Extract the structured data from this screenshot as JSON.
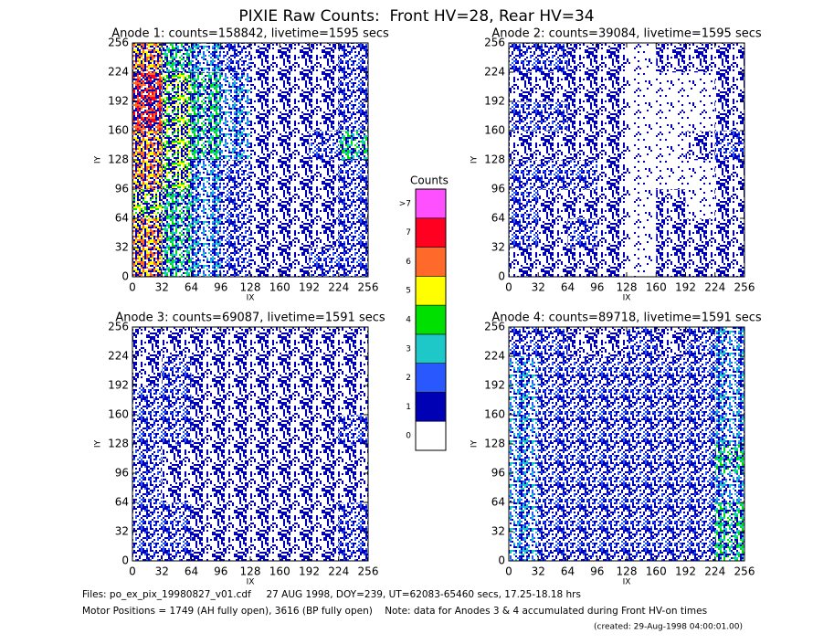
{
  "title": "PIXIE Raw Counts:  Front HV=28, Rear HV=34",
  "colorbar": {
    "title": "Counts",
    "labels": [
      "0",
      "1",
      "2",
      "3",
      "4",
      "5",
      "6",
      "7",
      ">7"
    ],
    "colors": [
      "#ffffff",
      "#0000b4",
      "#2a58ff",
      "#1ec8c8",
      "#00e000",
      "#ffff00",
      "#ff6a2a",
      "#ff0020",
      "#ff50ff"
    ]
  },
  "footer": [
    "Files: po_ex_pix_19980827_v01.cdf     27 AUG 1998, DOY=239, UT=62083-65460 secs, 17.25-18.18 hrs",
    "Motor Positions = 1749 (AH fully open), 3616 (BP fully open)    Note: data for Anodes 3 & 4 accumulated during Front HV-on times",
    "(created: 29-Aug-1998 04:00:01.00)"
  ],
  "chart_data": [
    {
      "type": "heatmap",
      "title": "Anode 1: counts=158842, livetime=1595 secs",
      "xlabel": "IX",
      "ylabel": "IY",
      "xlim": [
        0,
        256
      ],
      "ylim": [
        0,
        256
      ],
      "xticks": [
        0,
        32,
        64,
        96,
        128,
        160,
        192,
        224,
        256
      ],
      "yticks": [
        0,
        32,
        64,
        96,
        128,
        160,
        192,
        224,
        256
      ],
      "values": [
        [
          6,
          4,
          3,
          2,
          1,
          1,
          2,
          2
        ],
        [
          6,
          4,
          3,
          2,
          1,
          1,
          1,
          2
        ],
        [
          5,
          4,
          3,
          2,
          1,
          1,
          1,
          2
        ],
        [
          6,
          5,
          3,
          2,
          1,
          1,
          1,
          2
        ],
        [
          6,
          5,
          4,
          3,
          1,
          1,
          2,
          4
        ],
        [
          7,
          5,
          4,
          3,
          1,
          1,
          1,
          2
        ],
        [
          7,
          5,
          4,
          3,
          1,
          1,
          1,
          2
        ],
        [
          6,
          4,
          3,
          2,
          1,
          1,
          1,
          2
        ]
      ]
    },
    {
      "type": "heatmap",
      "title": "Anode 2: counts=39084, livetime=1595 secs",
      "xlabel": "IX",
      "ylabel": "IY",
      "xlim": [
        0,
        256
      ],
      "ylim": [
        0,
        256
      ],
      "xticks": [
        0,
        32,
        64,
        96,
        128,
        160,
        192,
        224,
        256
      ],
      "yticks": [
        0,
        32,
        64,
        96,
        128,
        160,
        192,
        224,
        256
      ],
      "values": [
        [
          1,
          1,
          1,
          1,
          0,
          1,
          1,
          1
        ],
        [
          2,
          1,
          2,
          1,
          0,
          1,
          1,
          1
        ],
        [
          2,
          1,
          1,
          1,
          0,
          1,
          0,
          1
        ],
        [
          2,
          2,
          2,
          1,
          0,
          0,
          0,
          1
        ],
        [
          1,
          1,
          1,
          1,
          0,
          0,
          1,
          2
        ],
        [
          2,
          2,
          1,
          1,
          0,
          0,
          0,
          1
        ],
        [
          1,
          1,
          1,
          1,
          0,
          0,
          0,
          1
        ],
        [
          2,
          2,
          1,
          1,
          0,
          1,
          1,
          1
        ]
      ]
    },
    {
      "type": "heatmap",
      "title": "Anode 3: counts=69087, livetime=1591 secs",
      "xlabel": "IX",
      "ylabel": "IY",
      "xlim": [
        0,
        256
      ],
      "ylim": [
        0,
        256
      ],
      "xticks": [
        0,
        32,
        64,
        96,
        128,
        160,
        192,
        224,
        256
      ],
      "yticks": [
        0,
        32,
        64,
        96,
        128,
        160,
        192,
        224,
        256
      ],
      "values": [
        [
          2,
          2,
          1,
          1,
          1,
          1,
          1,
          2
        ],
        [
          2,
          2,
          1,
          1,
          1,
          1,
          1,
          2
        ],
        [
          2,
          1,
          1,
          1,
          1,
          1,
          1,
          1
        ],
        [
          2,
          1,
          1,
          1,
          1,
          1,
          1,
          1
        ],
        [
          2,
          2,
          1,
          1,
          1,
          1,
          1,
          2
        ],
        [
          2,
          2,
          1,
          1,
          1,
          1,
          1,
          1
        ],
        [
          1,
          2,
          1,
          1,
          1,
          1,
          1,
          1
        ],
        [
          1,
          1,
          1,
          1,
          1,
          1,
          1,
          1
        ]
      ]
    },
    {
      "type": "heatmap",
      "title": "Anode 4: counts=89718, livetime=1591 secs",
      "xlabel": "IX",
      "ylabel": "IY",
      "xlim": [
        0,
        256
      ],
      "ylim": [
        0,
        256
      ],
      "xticks": [
        0,
        32,
        64,
        96,
        128,
        160,
        192,
        224,
        256
      ],
      "yticks": [
        0,
        32,
        64,
        96,
        128,
        160,
        192,
        224,
        256
      ],
      "values": [
        [
          3,
          2,
          2,
          2,
          2,
          2,
          2,
          4
        ],
        [
          3,
          2,
          2,
          2,
          2,
          2,
          2,
          4
        ],
        [
          3,
          2,
          2,
          2,
          2,
          2,
          2,
          3
        ],
        [
          3,
          2,
          2,
          2,
          2,
          2,
          2,
          4
        ],
        [
          3,
          2,
          2,
          2,
          2,
          2,
          2,
          3
        ],
        [
          3,
          2,
          2,
          2,
          2,
          2,
          2,
          3
        ],
        [
          3,
          2,
          2,
          2,
          2,
          2,
          2,
          3
        ],
        [
          2,
          2,
          1,
          1,
          2,
          1,
          2,
          3
        ]
      ]
    }
  ]
}
